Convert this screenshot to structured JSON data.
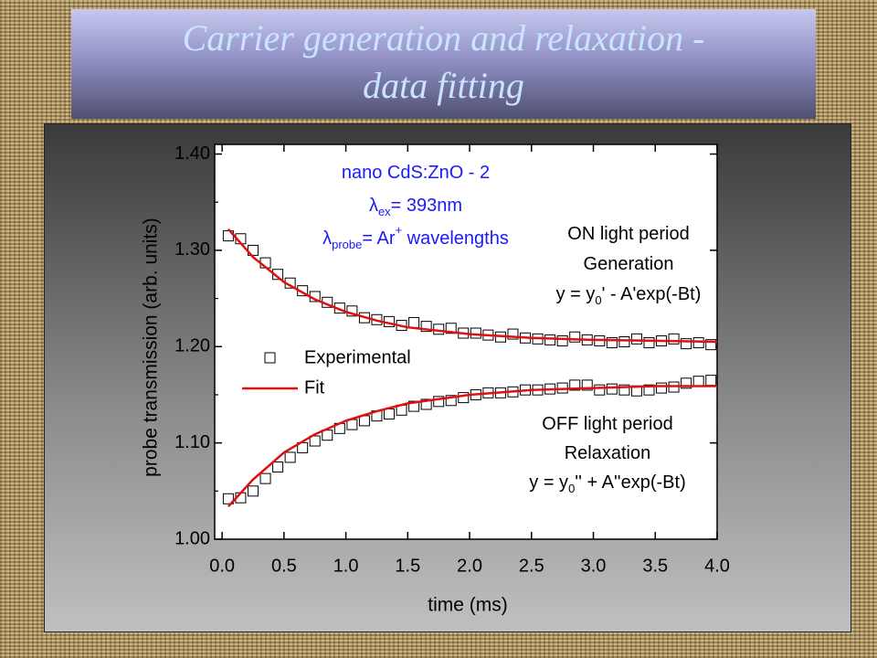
{
  "slide": {
    "title_lines": [
      "Carrier generation and relaxation -",
      "data fitting"
    ]
  },
  "chart_data": {
    "type": "scatter",
    "x_label": "time (ms)",
    "y_label": "probe transmission (arb. units)",
    "xlim": [
      -0.06,
      4.0
    ],
    "ylim": [
      1.0,
      1.41
    ],
    "xticks": [
      {
        "value": 0,
        "label": "0.0"
      },
      0.5,
      {
        "value": 1,
        "label": "1.0"
      },
      1.5,
      {
        "value": 2,
        "label": "2.0"
      },
      2.5,
      {
        "value": 3,
        "label": "3.0"
      },
      3.5,
      {
        "value": 4,
        "label": "4.0"
      }
    ],
    "yticks": [
      {
        "value": 1.0,
        "label": "1.00"
      },
      {
        "value": 1.1,
        "label": "1.10"
      },
      {
        "value": 1.2,
        "label": "1.20"
      },
      {
        "value": 1.3,
        "label": "1.30"
      },
      {
        "value": 1.4,
        "label": "1.40"
      }
    ],
    "yminor_ticks": [
      1.05,
      1.15,
      1.25,
      1.35
    ],
    "series": [
      {
        "name": "Experimental",
        "type": "scatter",
        "color": "#000000",
        "x": [
          0.05,
          0.15,
          0.25,
          0.35,
          0.45,
          0.55,
          0.65,
          0.75,
          0.85,
          0.95,
          1.05,
          1.15,
          1.25,
          1.35,
          1.45,
          1.55,
          1.65,
          1.75,
          1.85,
          1.95,
          2.05,
          2.15,
          2.25,
          2.35,
          2.45,
          2.55,
          2.65,
          2.75,
          2.85,
          2.95,
          3.05,
          3.15,
          3.25,
          3.35,
          3.45,
          3.55,
          3.65,
          3.75,
          3.85,
          3.95
        ],
        "values": [
          1.315,
          1.312,
          1.3,
          1.287,
          1.275,
          1.266,
          1.258,
          1.252,
          1.246,
          1.24,
          1.237,
          1.23,
          1.228,
          1.226,
          1.222,
          1.225,
          1.221,
          1.218,
          1.219,
          1.214,
          1.214,
          1.212,
          1.21,
          1.213,
          1.209,
          1.208,
          1.207,
          1.206,
          1.21,
          1.207,
          1.206,
          1.204,
          1.205,
          1.208,
          1.204,
          1.206,
          1.208,
          1.203,
          1.204,
          1.202
        ]
      },
      {
        "type": "scatter",
        "color": "#000000",
        "x": [
          0.05,
          0.15,
          0.25,
          0.35,
          0.45,
          0.55,
          0.65,
          0.75,
          0.85,
          0.95,
          1.05,
          1.15,
          1.25,
          1.35,
          1.45,
          1.55,
          1.65,
          1.75,
          1.85,
          1.95,
          2.05,
          2.15,
          2.25,
          2.35,
          2.45,
          2.55,
          2.65,
          2.75,
          2.85,
          2.95,
          3.05,
          3.15,
          3.25,
          3.35,
          3.45,
          3.55,
          3.65,
          3.75,
          3.85,
          3.95
        ],
        "values": [
          1.042,
          1.043,
          1.05,
          1.063,
          1.075,
          1.085,
          1.095,
          1.102,
          1.108,
          1.115,
          1.119,
          1.123,
          1.128,
          1.13,
          1.134,
          1.138,
          1.14,
          1.143,
          1.144,
          1.147,
          1.15,
          1.152,
          1.152,
          1.153,
          1.155,
          1.155,
          1.156,
          1.157,
          1.16,
          1.16,
          1.155,
          1.156,
          1.155,
          1.154,
          1.155,
          1.157,
          1.158,
          1.162,
          1.164,
          1.165
        ]
      },
      {
        "name": "Fit",
        "type": "line",
        "color": "#e01010",
        "x": [
          0.05,
          0.25,
          0.5,
          0.75,
          1.0,
          1.25,
          1.5,
          2.0,
          2.5,
          3.0,
          3.5,
          4.0
        ],
        "values": [
          1.322,
          1.293,
          1.267,
          1.249,
          1.236,
          1.227,
          1.22,
          1.213,
          1.209,
          1.207,
          1.206,
          1.205
        ]
      },
      {
        "type": "line",
        "color": "#e01010",
        "x": [
          0.05,
          0.25,
          0.5,
          0.75,
          1.0,
          1.25,
          1.5,
          2.0,
          2.5,
          3.0,
          3.5,
          4.0
        ],
        "values": [
          1.034,
          1.062,
          1.09,
          1.109,
          1.123,
          1.133,
          1.141,
          1.15,
          1.155,
          1.157,
          1.159,
          1.159
        ]
      }
    ],
    "annotations": [
      {
        "color": "#1a1aff",
        "lines": [
          [
            {
              "text": "nano CdS:ZnO - 2"
            }
          ],
          [
            {
              "text": "λ"
            },
            {
              "text": "ex",
              "shift": "sub"
            },
            {
              "text": "= 393nm"
            }
          ],
          [
            {
              "text": "λ"
            },
            {
              "text": "probe",
              "shift": "sub"
            },
            {
              "text": "= Ar"
            },
            {
              "text": "+",
              "shift": "super"
            },
            {
              "text": " wavelengths"
            }
          ]
        ]
      },
      {
        "color": "#000000",
        "lines": [
          [
            {
              "text": "ON light period"
            }
          ],
          [
            {
              "text": "Generation"
            }
          ],
          [
            {
              "text": "y = y"
            },
            {
              "text": "0",
              "shift": "sub"
            },
            {
              "text": "' - A'exp(-Bt)"
            }
          ]
        ]
      },
      {
        "color": "#000000",
        "lines": [
          [
            {
              "text": "OFF light period"
            }
          ],
          [
            {
              "text": "Relaxation"
            }
          ],
          [
            {
              "text": "y = y"
            },
            {
              "text": "0",
              "shift": "sub"
            },
            {
              "text": "'' + A''exp(-Bt)"
            }
          ]
        ]
      }
    ]
  }
}
